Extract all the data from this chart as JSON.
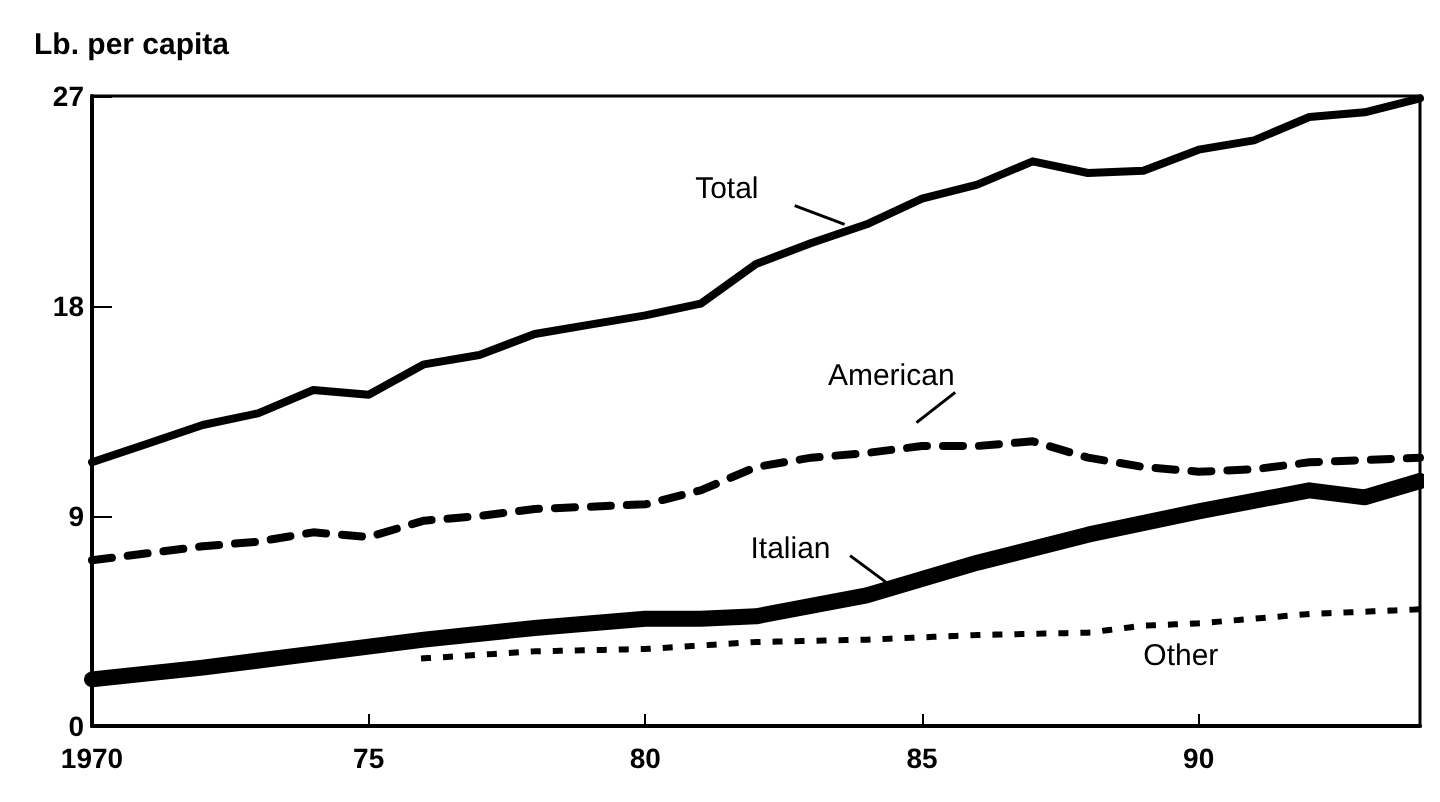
{
  "chart_data": {
    "type": "line",
    "ylabel": "Lb. per capita",
    "xlim": [
      1970,
      1994
    ],
    "xticks": [
      {
        "value": 1970,
        "label": "1970"
      },
      {
        "value": 1975,
        "label": "75"
      },
      {
        "value": 1980,
        "label": "80"
      },
      {
        "value": 1985,
        "label": "85"
      },
      {
        "value": 1990,
        "label": "90"
      }
    ],
    "ylim": [
      0,
      27
    ],
    "yticks": [
      0,
      9,
      18,
      27
    ],
    "grid": false,
    "legend": false,
    "marker": "none",
    "series": [
      {
        "name": "Total",
        "color": "#000000",
        "line_style": "solid",
        "x": [
          1970,
          1971,
          1972,
          1973,
          1974,
          1975,
          1976,
          1977,
          1978,
          1979,
          1980,
          1981,
          1982,
          1983,
          1984,
          1985,
          1986,
          1987,
          1988,
          1989,
          1990,
          1991,
          1992,
          1993,
          1994
        ],
        "values": [
          11.3,
          12.1,
          12.9,
          13.4,
          14.4,
          14.2,
          15.5,
          15.9,
          16.8,
          17.2,
          17.6,
          18.1,
          19.8,
          20.7,
          21.5,
          22.6,
          23.2,
          24.2,
          23.7,
          23.8,
          24.7,
          25.1,
          26.1,
          26.3,
          26.9
        ]
      },
      {
        "name": "American",
        "color": "#000000",
        "line_style": "dashed",
        "x": [
          1970,
          1971,
          1972,
          1973,
          1974,
          1975,
          1976,
          1977,
          1978,
          1979,
          1980,
          1981,
          1982,
          1983,
          1984,
          1985,
          1986,
          1987,
          1988,
          1989,
          1990,
          1991,
          1992,
          1993,
          1994
        ],
        "values": [
          7.1,
          7.4,
          7.7,
          7.9,
          8.3,
          8.1,
          8.8,
          9.0,
          9.3,
          9.4,
          9.5,
          10.1,
          11.1,
          11.5,
          11.7,
          12.0,
          12.0,
          12.2,
          11.5,
          11.1,
          10.9,
          11.0,
          11.3,
          11.4,
          11.5
        ]
      },
      {
        "name": "Italian",
        "color": "#000000",
        "line_style": "solid",
        "x": [
          1970,
          1972,
          1974,
          1976,
          1978,
          1980,
          1981,
          1982,
          1984,
          1986,
          1988,
          1990,
          1992,
          1993,
          1994
        ],
        "values": [
          2.0,
          2.5,
          3.1,
          3.7,
          4.2,
          4.6,
          4.6,
          4.7,
          5.6,
          7.0,
          8.2,
          9.2,
          10.1,
          9.8,
          10.5
        ]
      },
      {
        "name": "Other",
        "color": "#000000",
        "line_style": "dotted",
        "x": [
          1976,
          1978,
          1980,
          1982,
          1984,
          1986,
          1988,
          1989,
          1990,
          1992,
          1994
        ],
        "values": [
          2.9,
          3.2,
          3.3,
          3.6,
          3.7,
          3.9,
          4.0,
          4.3,
          4.4,
          4.8,
          5.0
        ]
      }
    ]
  }
}
